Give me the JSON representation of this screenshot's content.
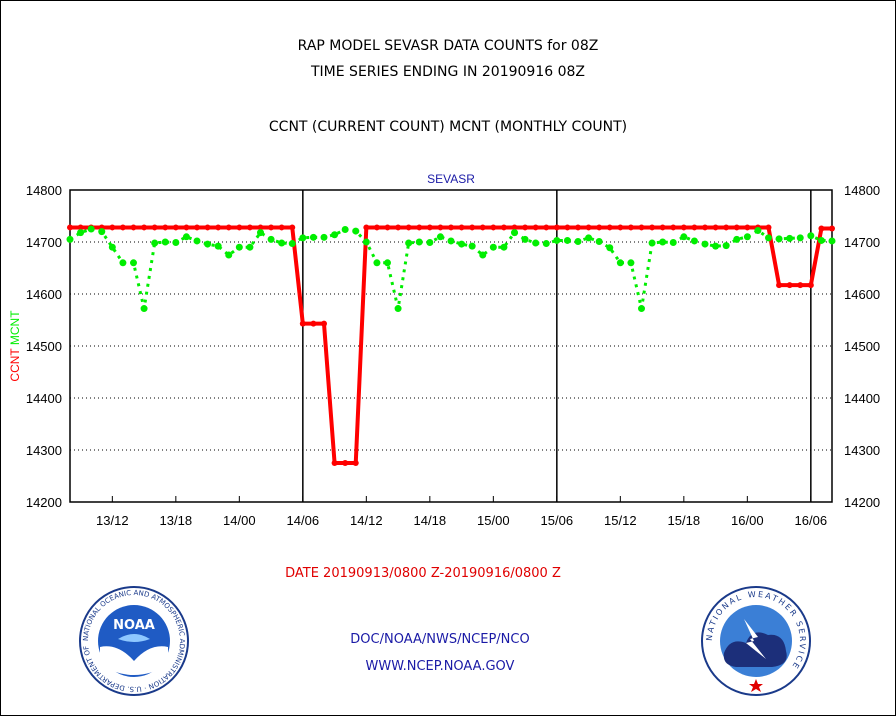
{
  "titles": {
    "line1": "RAP MODEL SEVASR DATA COUNTS for 08Z",
    "line2": "TIME SERIES ENDING IN 20190916 08Z",
    "line3": "CCNT (CURRENT COUNT) MCNT (MONTHLY COUNT)"
  },
  "footer": {
    "date_range": "DATE 20190913/0800 Z-20190916/0800 Z",
    "org": "DOC/NOAA/NWS/NCEP/NCO",
    "url": "WWW.NCEP.NOAA.GOV"
  },
  "logos": {
    "left": "NOAA",
    "left_ring": "NATIONAL OCEANIC AND ATMOSPHERIC ADMINISTRATION · U.S. DEPARTMENT OF COMMERCE",
    "right_ring": "NATIONAL WEATHER SERVICE"
  },
  "chart_data": {
    "type": "line",
    "title": "SEVASR",
    "ylabel_ccnt": "CCNT",
    "ylabel_mcnt": "MCNT",
    "ylim": [
      14200,
      14800
    ],
    "yticks": [
      14200,
      14300,
      14400,
      14500,
      14600,
      14700,
      14800
    ],
    "x_unit": "hours since 20190913/0800 Z",
    "xlim": [
      0,
      72
    ],
    "xticks": [
      {
        "x": 4,
        "label": "13/12"
      },
      {
        "x": 10,
        "label": "13/18"
      },
      {
        "x": 16,
        "label": "14/00"
      },
      {
        "x": 22,
        "label": "14/06"
      },
      {
        "x": 28,
        "label": "14/12"
      },
      {
        "x": 34,
        "label": "14/18"
      },
      {
        "x": 40,
        "label": "15/00"
      },
      {
        "x": 46,
        "label": "15/06"
      },
      {
        "x": 52,
        "label": "15/12"
      },
      {
        "x": 58,
        "label": "15/18"
      },
      {
        "x": 64,
        "label": "16/00"
      },
      {
        "x": 70,
        "label": "16/06"
      }
    ],
    "day_boundaries": [
      22,
      46,
      70
    ],
    "grid": "horizontal dotted",
    "colors": {
      "ccnt": "#ff0000",
      "mcnt": "#00ee00",
      "title": "#1a1aa6"
    },
    "series": [
      {
        "name": "CCNT",
        "x": [
          0,
          1,
          2,
          3,
          4,
          5,
          6,
          7,
          8,
          9,
          10,
          11,
          12,
          13,
          14,
          15,
          16,
          17,
          18,
          19,
          20,
          21,
          22,
          23,
          24,
          25,
          26,
          27,
          28,
          29,
          30,
          31,
          32,
          33,
          34,
          35,
          36,
          37,
          38,
          39,
          40,
          41,
          42,
          43,
          44,
          45,
          46,
          47,
          48,
          49,
          50,
          51,
          52,
          53,
          54,
          55,
          56,
          57,
          58,
          59,
          60,
          61,
          62,
          63,
          64,
          65,
          66,
          67,
          68,
          69,
          70,
          71,
          72
        ],
        "values": [
          14728,
          14728,
          14728,
          14728,
          14728,
          14728,
          14728,
          14728,
          14728,
          14728,
          14728,
          14728,
          14728,
          14728,
          14728,
          14728,
          14728,
          14728,
          14728,
          14728,
          14728,
          14728,
          14543,
          14543,
          14543,
          14275,
          14275,
          14275,
          14728,
          14728,
          14728,
          14728,
          14728,
          14728,
          14728,
          14728,
          14728,
          14728,
          14728,
          14728,
          14728,
          14728,
          14728,
          14728,
          14728,
          14728,
          14728,
          14728,
          14728,
          14728,
          14728,
          14728,
          14728,
          14728,
          14728,
          14728,
          14728,
          14728,
          14728,
          14728,
          14728,
          14728,
          14728,
          14728,
          14728,
          14728,
          14728,
          14617,
          14617,
          14617,
          14617,
          14726,
          14726
        ]
      },
      {
        "name": "MCNT",
        "x": [
          0,
          1,
          2,
          3,
          4,
          5,
          6,
          7,
          8,
          9,
          10,
          11,
          12,
          13,
          14,
          15,
          16,
          17,
          18,
          19,
          20,
          21,
          22,
          23,
          24,
          25,
          26,
          27,
          28,
          29,
          30,
          31,
          32,
          33,
          34,
          35,
          36,
          37,
          38,
          39,
          40,
          41,
          42,
          43,
          44,
          45,
          46,
          47,
          48,
          49,
          50,
          51,
          52,
          53,
          54,
          55,
          56,
          57,
          58,
          59,
          60,
          61,
          62,
          63,
          64,
          65,
          66,
          67,
          68,
          69,
          70,
          71,
          72
        ],
        "values": [
          14705,
          14718,
          14725,
          14720,
          14690,
          14660,
          14660,
          14572,
          14698,
          14700,
          14699,
          14710,
          14702,
          14696,
          14692,
          14675,
          14690,
          14690,
          14718,
          14705,
          14698,
          14697,
          14708,
          14709,
          14709,
          14714,
          14724,
          14721,
          14700,
          14660,
          14660,
          14572,
          14698,
          14700,
          14699,
          14710,
          14702,
          14696,
          14692,
          14675,
          14690,
          14690,
          14718,
          14705,
          14698,
          14697,
          14703,
          14703,
          14701,
          14708,
          14701,
          14689,
          14660,
          14660,
          14572,
          14698,
          14700,
          14699,
          14710,
          14702,
          14696,
          14692,
          14693,
          14705,
          14710,
          14722,
          14708,
          14706,
          14707,
          14708,
          14712,
          14703,
          14702
        ]
      }
    ]
  }
}
